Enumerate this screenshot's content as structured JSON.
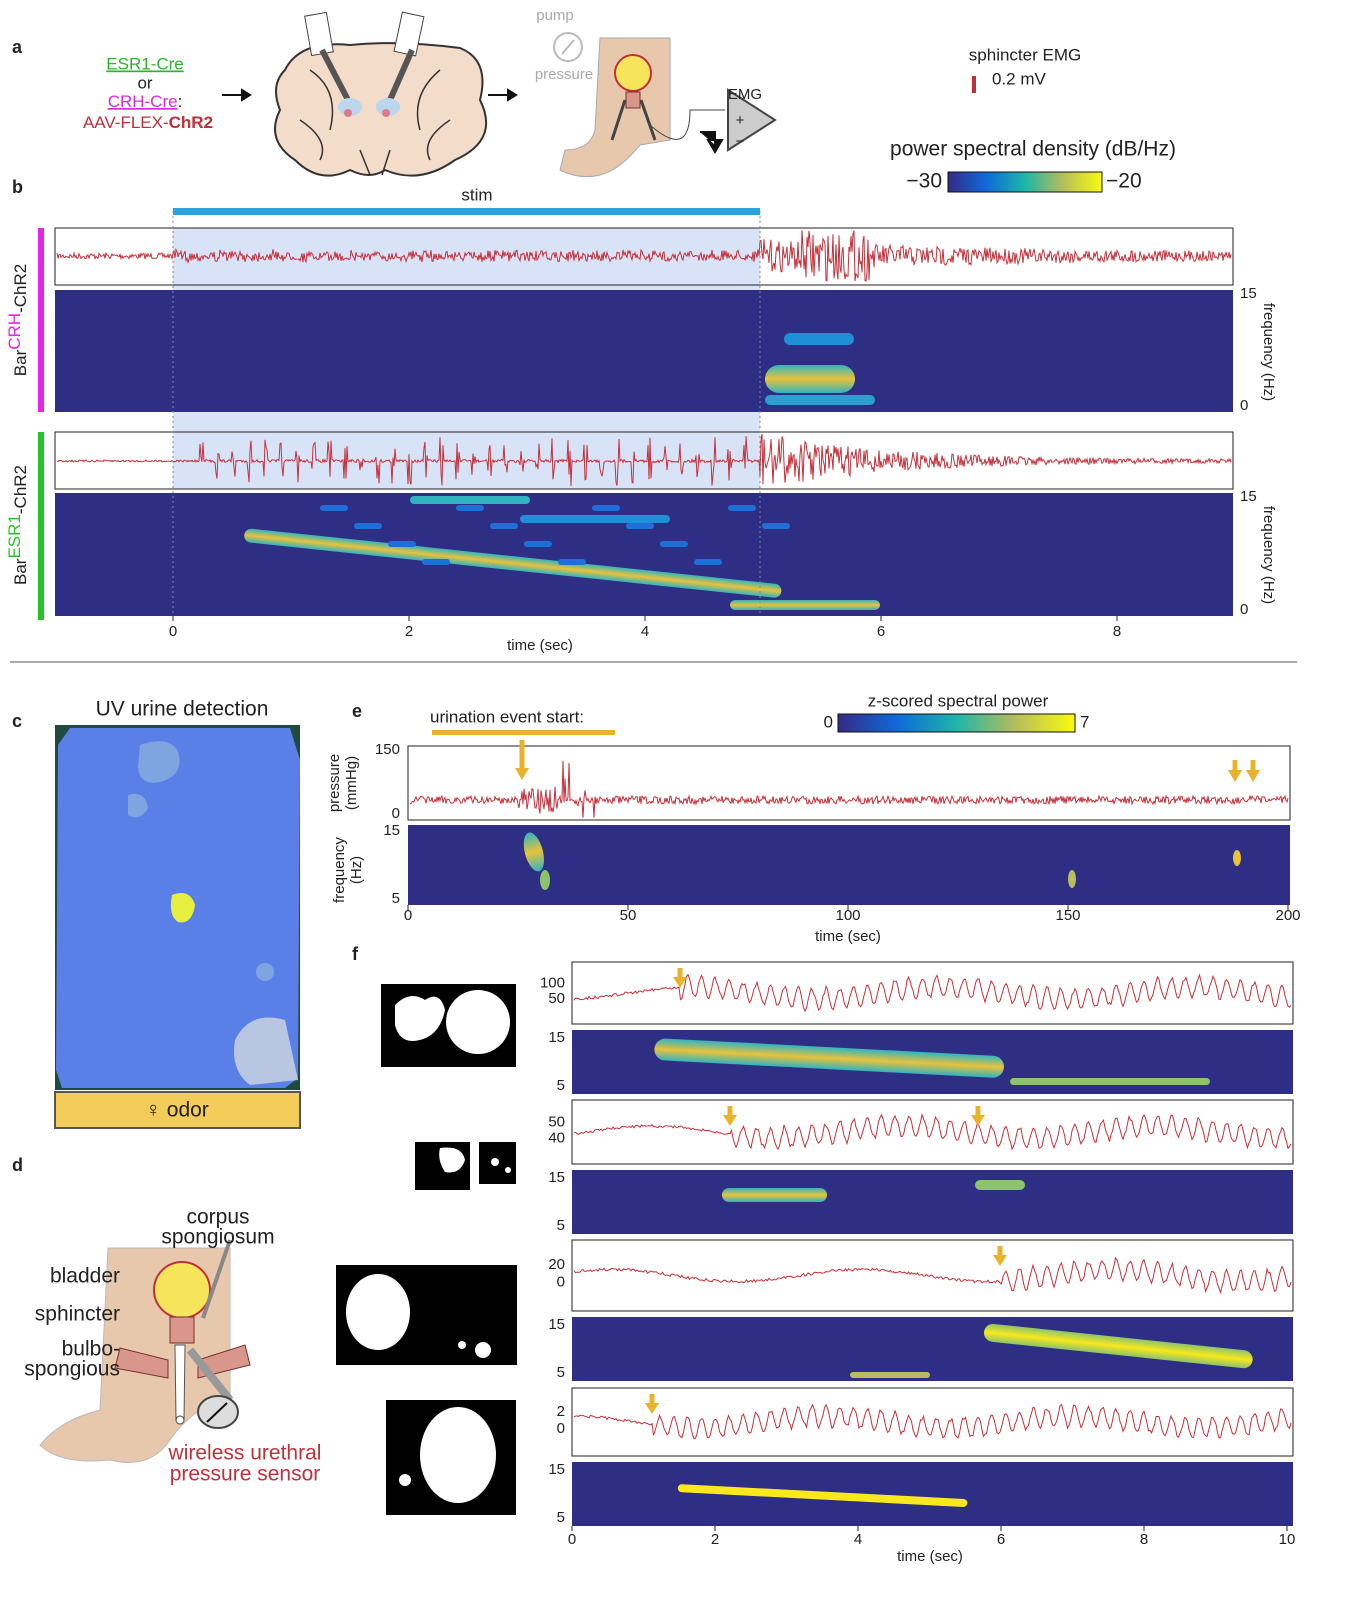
{
  "panel_a": {
    "label": "a",
    "cre1": "ESR1-Cre",
    "or": "or",
    "cre2": "CRH-Cre",
    "colon": ":",
    "virus": "AAV-FLEX-",
    "virus_bold": "ChR2",
    "pump": "pump",
    "pressure": "pressure",
    "emg": "EMG",
    "plus": "+",
    "minus": "−",
    "scale_title": "sphincter EMG",
    "scale_value": "0.2 mV",
    "psd_title": "power spectral density (dB/Hz)",
    "psd_min": "−30",
    "psd_max": "−20"
  },
  "panel_b": {
    "label": "b",
    "stim": "stim",
    "row1": {
      "pre": "Bar",
      "sup": "CRH",
      "post": "-ChR2"
    },
    "row2": {
      "pre": "Bar",
      "sup": "ESR1",
      "post": "-ChR2"
    },
    "freq_label": "frequency (Hz)",
    "freq_ticks": [
      "15",
      "0"
    ],
    "x_ticks": [
      "0",
      "2",
      "4",
      "6",
      "8"
    ],
    "x_label": "time (sec)"
  },
  "panel_c": {
    "label": "c",
    "title": "UV urine detection",
    "odor": "♀ odor"
  },
  "panel_d": {
    "label": "d",
    "corpus1": "corpus",
    "corpus2": "spongiosum",
    "bladder": "bladder",
    "sphincter": "sphincter",
    "bulbo1": "bulbo-",
    "bulbo2": "spongious",
    "sensor1": "wireless urethral",
    "sensor2": "pressure sensor"
  },
  "panel_e": {
    "label": "e",
    "event": "urination event start:",
    "cbar_title": "z-scored spectral power",
    "cbar_min": "0",
    "cbar_max": "7",
    "pressure_label1": "pressure",
    "pressure_label2": "(mmHg)",
    "pressure_ticks": [
      "150",
      "0"
    ],
    "freq_label1": "frequency",
    "freq_label2": "(Hz)",
    "freq_ticks": [
      "15",
      "5"
    ],
    "x_ticks": [
      "0",
      "50",
      "100",
      "150",
      "200"
    ],
    "x_label": "time (sec)"
  },
  "panel_f": {
    "label": "f",
    "rows": [
      {
        "yticks": [
          "100",
          "50"
        ]
      },
      {
        "yticks": [
          "50",
          "40"
        ]
      },
      {
        "yticks": [
          "20",
          "0"
        ]
      },
      {
        "yticks": [
          "2",
          "0"
        ]
      }
    ],
    "freq_ticks": [
      "15",
      "5"
    ],
    "x_ticks": [
      "0",
      "2",
      "4",
      "6",
      "8",
      "10"
    ],
    "x_label": "time (sec)"
  }
}
